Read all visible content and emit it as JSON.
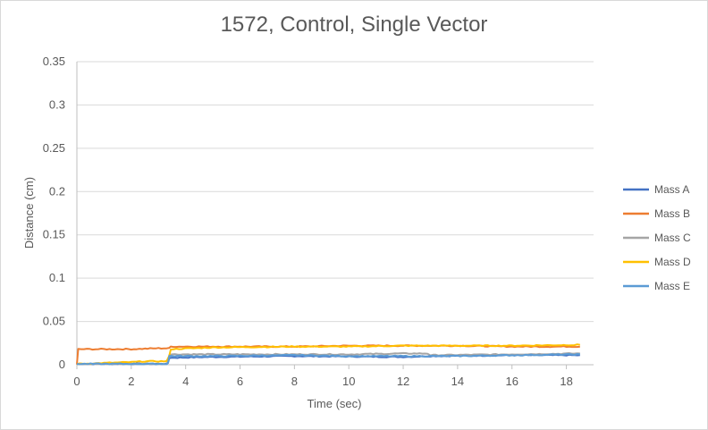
{
  "chart_data": {
    "type": "line",
    "title": "1572, Control, Single Vector",
    "xlabel": "Time (sec)",
    "ylabel": "Distance (cm)",
    "xlim": [
      0,
      19
    ],
    "ylim": [
      0,
      0.35
    ],
    "x_ticks": [
      "0",
      "2",
      "4",
      "6",
      "8",
      "10",
      "12",
      "14",
      "16",
      "18"
    ],
    "x_tick_values": [
      0,
      2,
      4,
      6,
      8,
      10,
      12,
      14,
      16,
      18
    ],
    "y_ticks": [
      "0",
      "0.05",
      "0.1",
      "0.15",
      "0.2",
      "0.25",
      "0.3",
      "0.35"
    ],
    "y_tick_values": [
      0,
      0.05,
      0.1,
      0.15,
      0.2,
      0.25,
      0.3,
      0.35
    ],
    "grid": "horizontal",
    "legend_position": "right",
    "series": [
      {
        "name": "Mass A",
        "color": "#4472c4",
        "x": [
          0,
          3.3,
          3.35,
          3.4,
          5,
          8,
          12,
          13,
          16,
          18.5
        ],
        "y": [
          0.001,
          0.001,
          0.002,
          0.008,
          0.009,
          0.01,
          0.009,
          0.01,
          0.011,
          0.011
        ]
      },
      {
        "name": "Mass B",
        "color": "#ed7d31",
        "x": [
          0,
          0.05,
          1,
          2,
          3,
          3.4,
          3.45,
          5,
          8,
          10,
          12,
          14,
          16,
          18.5
        ],
        "y": [
          0.0,
          0.018,
          0.018,
          0.018,
          0.019,
          0.019,
          0.021,
          0.021,
          0.021,
          0.022,
          0.022,
          0.022,
          0.021,
          0.021
        ]
      },
      {
        "name": "Mass C",
        "color": "#a5a5a5",
        "x": [
          0,
          3.3,
          3.35,
          3.4,
          5,
          8,
          10,
          12,
          12.9,
          13,
          16,
          18.5
        ],
        "y": [
          0.001,
          0.001,
          0.004,
          0.012,
          0.012,
          0.012,
          0.012,
          0.013,
          0.013,
          0.011,
          0.012,
          0.013
        ]
      },
      {
        "name": "Mass D",
        "color": "#ffc000",
        "x": [
          0,
          1,
          2,
          2.5,
          3.3,
          3.4,
          3.45,
          5,
          8,
          10,
          12,
          14,
          16,
          18.5
        ],
        "y": [
          0.001,
          0.002,
          0.003,
          0.004,
          0.004,
          0.01,
          0.018,
          0.02,
          0.021,
          0.021,
          0.022,
          0.022,
          0.022,
          0.023
        ]
      },
      {
        "name": "Mass E",
        "color": "#5b9bd5",
        "x": [
          0,
          3.3,
          3.35,
          3.4,
          5,
          8,
          10,
          12,
          14,
          16,
          18.5
        ],
        "y": [
          0.001,
          0.001,
          0.002,
          0.01,
          0.01,
          0.011,
          0.01,
          0.01,
          0.01,
          0.011,
          0.012
        ]
      }
    ]
  }
}
